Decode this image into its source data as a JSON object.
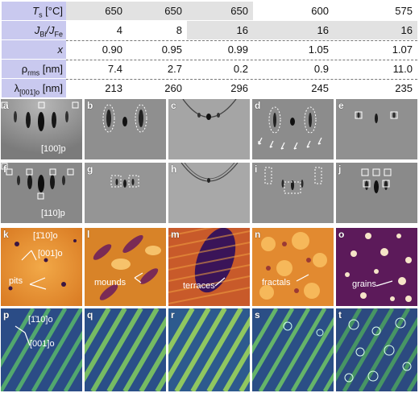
{
  "table": {
    "columns": [
      "650",
      "650",
      "650",
      "600",
      "575"
    ],
    "rows": [
      {
        "label_main": "T",
        "label_sub": "s",
        "label_tail": " [°C]",
        "values": [
          "650",
          "650",
          "650",
          "600",
          "575"
        ],
        "shaded": true
      },
      {
        "label_main": "J",
        "label_sub": "Bi",
        "label_tail": "/J",
        "label_sub2": "Fe",
        "values": [
          "4",
          "8",
          "16",
          "16",
          "16"
        ],
        "shaded": true
      },
      {
        "label_main": "x",
        "values": [
          "0.90",
          "0.95",
          "0.99",
          "1.05",
          "1.07"
        ],
        "shaded": false
      },
      {
        "label_main": "ρ",
        "label_sub": "rms",
        "label_tail": " [nm]",
        "values": [
          "7.4",
          "2.7",
          "0.2",
          "0.9",
          "11.0"
        ],
        "shaded": false
      },
      {
        "label_main": "λ",
        "label_sub": "[001]o",
        "label_tail": " [nm]",
        "values": [
          "213",
          "260",
          "296",
          "245",
          "235"
        ],
        "shaded": false
      }
    ]
  },
  "panels": {
    "row1": [
      "a",
      "b",
      "c",
      "d",
      "e"
    ],
    "row2": [
      "f",
      "g",
      "h",
      "i",
      "j"
    ],
    "row3": [
      "k",
      "l",
      "m",
      "n",
      "o"
    ],
    "row4": [
      "p",
      "q",
      "r",
      "s",
      "t"
    ]
  },
  "annotations": {
    "a_dir": "[100]p",
    "f_dir": "[110]p",
    "k_dir1": "[1̄10]o",
    "k_dir2": "[001]o",
    "k_feature": "pits",
    "l_feature": "mounds",
    "m_feature": "terraces",
    "n_feature": "fractals",
    "o_feature": "grains",
    "p_dir1": "[1̄10]o",
    "p_dir2": "[001]o"
  },
  "colors": {
    "header_bg": "#c9c9ef",
    "shade_bg": "#e2e2e2",
    "rheed_bg": "#8f8f8f",
    "afm_orange": "#e98b2a",
    "afm_purple": "#5c1a5a",
    "map_green": "#4fa85c"
  }
}
